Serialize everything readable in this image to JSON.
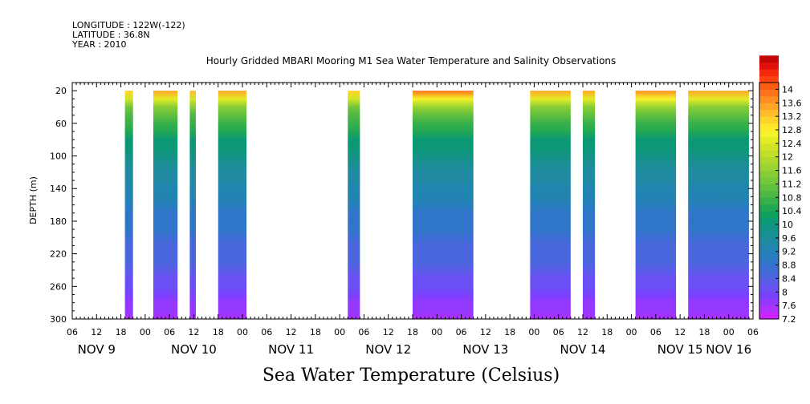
{
  "header": {
    "longitude": "LONGITUDE : 122W(-122)",
    "latitude": "LATITUDE : 36.8N",
    "year": "YEAR : 2010"
  },
  "chart_data": {
    "type": "heatmap",
    "title": "Hourly Gridded MBARI Mooring M1 Sea Water Temperature and Salinity Observations",
    "xlabel": "",
    "ylabel": "DEPTH (m)",
    "caption": "Sea Water Temperature (Celsius)",
    "x_units": "hours since 2010-11-09 00:00",
    "xlim": [
      6,
      174
    ],
    "ylim": [
      300,
      10
    ],
    "y_ticks": [
      20,
      60,
      100,
      140,
      180,
      220,
      260,
      300
    ],
    "x_tick_labels": [
      "06",
      "12",
      "18",
      "00",
      "06",
      "12",
      "18",
      "00",
      "06",
      "12",
      "18",
      "00",
      "06",
      "12",
      "18",
      "00",
      "06",
      "12",
      "18",
      "00",
      "06",
      "12",
      "18",
      "00",
      "06",
      "12",
      "18",
      "00",
      "06"
    ],
    "x_tick_start_hour": 6,
    "x_tick_step_hours": 6,
    "day_labels": [
      {
        "label": "NOV  9",
        "hour": 12
      },
      {
        "label": "NOV 10",
        "hour": 36
      },
      {
        "label": "NOV 11",
        "hour": 60
      },
      {
        "label": "NOV 12",
        "hour": 84
      },
      {
        "label": "NOV 13",
        "hour": 108
      },
      {
        "label": "NOV 14",
        "hour": 132
      },
      {
        "label": "NOV 15",
        "hour": 156
      },
      {
        "label": "NOV 16",
        "hour": 168
      }
    ],
    "depth_range": [
      20,
      300
    ],
    "data_segments": [
      {
        "start_hour": 19,
        "end_hour": 21,
        "surface_temp": 13.2
      },
      {
        "start_hour": 26,
        "end_hour": 32,
        "surface_temp": 13.4
      },
      {
        "start_hour": 35,
        "end_hour": 36.5,
        "surface_temp": 13.3
      },
      {
        "start_hour": 42,
        "end_hour": 49,
        "surface_temp": 13.6
      },
      {
        "start_hour": 74,
        "end_hour": 77,
        "surface_temp": 13.2
      },
      {
        "start_hour": 90,
        "end_hour": 105,
        "surface_temp": 13.8
      },
      {
        "start_hour": 119,
        "end_hour": 129,
        "surface_temp": 13.6
      },
      {
        "start_hour": 132,
        "end_hour": 135,
        "surface_temp": 13.6
      },
      {
        "start_hour": 145,
        "end_hour": 155,
        "surface_temp": 13.7
      },
      {
        "start_hour": 158,
        "end_hour": 173,
        "surface_temp": 13.6
      }
    ],
    "temperature_profile": [
      {
        "depth": 20,
        "temp": 13.6
      },
      {
        "depth": 30,
        "temp": 12.6
      },
      {
        "depth": 40,
        "temp": 11.6
      },
      {
        "depth": 55,
        "temp": 10.8
      },
      {
        "depth": 80,
        "temp": 10.2
      },
      {
        "depth": 110,
        "temp": 9.7
      },
      {
        "depth": 140,
        "temp": 9.3
      },
      {
        "depth": 180,
        "temp": 8.9
      },
      {
        "depth": 220,
        "temp": 8.5
      },
      {
        "depth": 260,
        "temp": 8.1
      },
      {
        "depth": 300,
        "temp": 7.5
      }
    ],
    "colorbar": {
      "min": 7.2,
      "max": 14.2,
      "step": 0.2,
      "tick_labels": [
        "14",
        "13.6",
        "13.2",
        "12.8",
        "12.4",
        "12",
        "11.6",
        "11.2",
        "10.8",
        "10.4",
        "10",
        "9.6",
        "9.2",
        "8.8",
        "8.4",
        "8",
        "7.6",
        "7.2"
      ],
      "colors": [
        "#cc22ff",
        "#b030ff",
        "#9438ff",
        "#7a40ff",
        "#6a50f4",
        "#5a5ce8",
        "#4a66dc",
        "#3c6ed4",
        "#3076c8",
        "#267ebc",
        "#2284b0",
        "#1f8aa2",
        "#1a8f94",
        "#129385",
        "#0b9874",
        "#10a05e",
        "#22a852",
        "#38b04a",
        "#4db844",
        "#60bf3e",
        "#74c63a",
        "#88cd36",
        "#9ad332",
        "#aed82e",
        "#c0de2a",
        "#d2e428",
        "#e4ec26",
        "#f6f22a",
        "#ffe82a",
        "#ffd42a",
        "#ffbe2a",
        "#ffa626",
        "#ff8e22",
        "#ff741c",
        "#ff5c16",
        "#ff4210",
        "#f4280c",
        "#e0100a",
        "#c20808"
      ]
    }
  }
}
